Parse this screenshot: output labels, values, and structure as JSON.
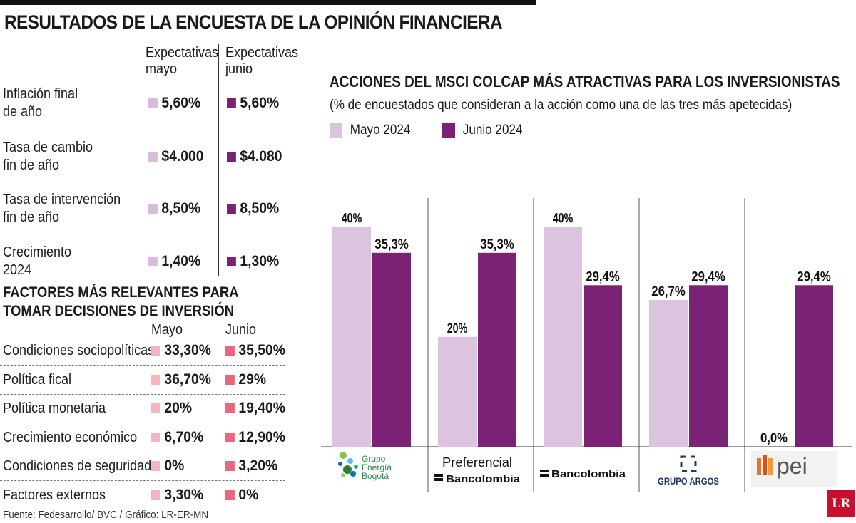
{
  "title": "RESULTADOS DE LA ENCUESTA DE LA OPINIÓN FINANCIERA",
  "expectations": {
    "header_may_1": "Expectativas",
    "header_may_2": "mayo",
    "header_jun_1": "Expectativas",
    "header_jun_2": "junio",
    "color_may": "#d9bcdc",
    "color_jun": "#7b2176",
    "rows": [
      {
        "label_1": "Inflación final",
        "label_2": "de año",
        "may": "5,60%",
        "jun": "5,60%"
      },
      {
        "label_1": "Tasa de cambio",
        "label_2": "fin de año",
        "may": "$4.000",
        "jun": "$4.080"
      },
      {
        "label_1": "Tasa de intervención",
        "label_2": "fin de año",
        "may": "8,50%",
        "jun": "8,50%"
      },
      {
        "label_1": "Crecimiento",
        "label_2": "2024",
        "may": "1,40%",
        "jun": "1,30%"
      }
    ]
  },
  "factors": {
    "title_1": "FACTORES MÁS RELEVANTES PARA",
    "title_2": "TOMAR DECISIONES DE INVERSIÓN",
    "header_may": "Mayo",
    "header_jun": "Junio",
    "color_may": "#f3b6bf",
    "color_jun": "#e8677c",
    "rows": [
      {
        "label": "Condiciones sociopolíticas",
        "may": "33,30%",
        "jun": "35,50%"
      },
      {
        "label": "Política fical",
        "may": "36,70%",
        "jun": "29%"
      },
      {
        "label": "Política monetaria",
        "may": "20%",
        "jun": "19,40%"
      },
      {
        "label": "Crecimiento económico",
        "may": "6,70%",
        "jun": "12,90%"
      },
      {
        "label": "Condiciones de seguridad",
        "may": "0%",
        "jun": "3,20%"
      },
      {
        "label": "Factores externos",
        "may": "3,30%",
        "jun": "0%"
      }
    ]
  },
  "source": "Fuente: Fedesarrollo/ BVC / Gráfico: LR-ER-MN",
  "logo_badge": "LR",
  "chart_data": {
    "type": "bar",
    "title": "ACCIONES DEL MSCI COLCAP MÁS ATRACTIVAS PARA LOS INVERSIONISTAS",
    "subtitle": "(% de encuestados que consideran a la acción como una de las tres más apetecidas)",
    "categories": [
      "Grupo Energía Bogotá",
      "Preferencial Bancolombia",
      "Bancolombia",
      "Grupo Argos",
      "PEI"
    ],
    "ylim": [
      0,
      45
    ],
    "series": [
      {
        "name": "Mayo 2024",
        "color": "#dcc3df",
        "values": [
          40,
          20,
          40,
          26.7,
          0
        ],
        "labels": [
          "40%",
          "20%",
          "40%",
          "26,7%",
          "0,0%"
        ]
      },
      {
        "name": "Junio 2024",
        "color": "#7b2176",
        "values": [
          35.3,
          35.3,
          29.4,
          29.4,
          29.4
        ],
        "labels": [
          "35,3%",
          "35,3%",
          "29,4%",
          "29,4%",
          "29,4%"
        ]
      }
    ],
    "logos": [
      {
        "lines": [
          "Grupo",
          "Energía",
          "Bogotá"
        ],
        "color": "#2e8b57"
      },
      {
        "lines": [
          "Preferencial",
          "Bancolombia"
        ],
        "color": "#111111"
      },
      {
        "lines": [
          "Bancolombia"
        ],
        "color": "#111111"
      },
      {
        "lines": [
          "GRUPO ARGOS"
        ],
        "color": "#1f3a6b"
      },
      {
        "lines": [
          "pei"
        ],
        "color": "#555555"
      }
    ]
  }
}
